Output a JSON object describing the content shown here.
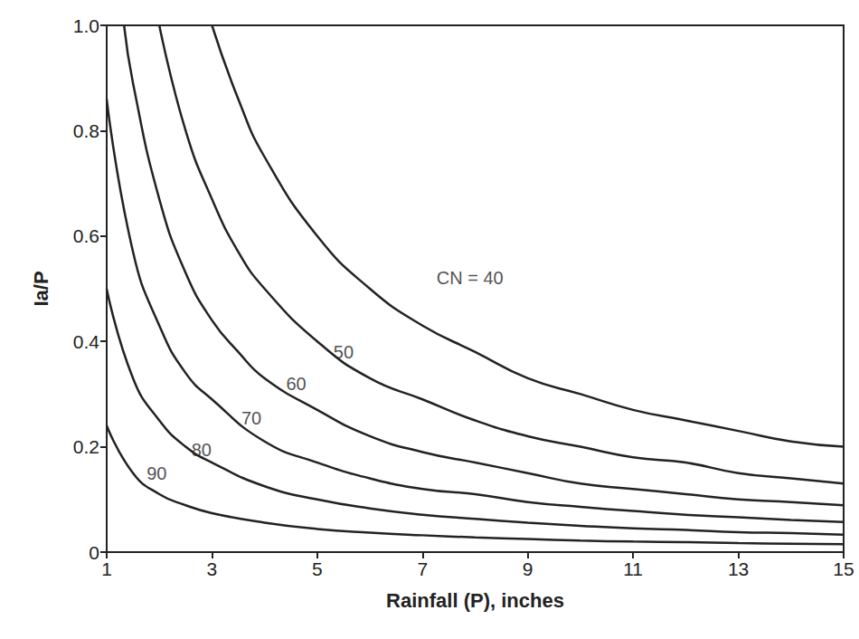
{
  "chart_data": {
    "type": "line",
    "xlabel": "Rainfall (P), inches",
    "ylabel": "Ia/P",
    "xlim": [
      1,
      15
    ],
    "xticks": [
      1,
      3,
      5,
      7,
      9,
      11,
      13,
      15
    ],
    "ylim": [
      0,
      1
    ],
    "yticks": [
      0,
      0.2,
      0.4,
      0.6,
      0.8,
      {
        "value": 1,
        "label": "1.0"
      }
    ],
    "grid": false,
    "color": "#222222",
    "series": [
      {
        "name": "CN = 40",
        "x": [
          3,
          3.5,
          4,
          5,
          6,
          7,
          8,
          9,
          10,
          11,
          12,
          13,
          14,
          15
        ],
        "values": [
          1.0,
          0.86,
          0.75,
          0.6,
          0.5,
          0.43,
          0.38,
          0.33,
          0.3,
          0.27,
          0.25,
          0.23,
          0.21,
          0.2
        ]
      },
      {
        "name": "50",
        "x": [
          2,
          2.5,
          3,
          3.5,
          4,
          5,
          6,
          7,
          8,
          9,
          10,
          11,
          12,
          13,
          14,
          15
        ],
        "values": [
          1.0,
          0.8,
          0.67,
          0.57,
          0.5,
          0.4,
          0.33,
          0.29,
          0.25,
          0.22,
          0.2,
          0.18,
          0.17,
          0.15,
          0.14,
          0.13
        ]
      },
      {
        "name": "60",
        "x": [
          1.33,
          1.5,
          2,
          2.5,
          3,
          3.5,
          4,
          5,
          6,
          7,
          8,
          9,
          10,
          11,
          12,
          13,
          14,
          15
        ],
        "values": [
          1.0,
          0.89,
          0.67,
          0.53,
          0.44,
          0.38,
          0.33,
          0.27,
          0.22,
          0.19,
          0.17,
          0.15,
          0.13,
          0.12,
          0.11,
          0.1,
          0.095,
          0.089
        ]
      },
      {
        "name": "70",
        "x": [
          1,
          1.5,
          2,
          2.5,
          3,
          4,
          5,
          6,
          7,
          8,
          9,
          10,
          11,
          12,
          13,
          14,
          15
        ],
        "values": [
          0.86,
          0.57,
          0.43,
          0.34,
          0.29,
          0.21,
          0.17,
          0.14,
          0.12,
          0.11,
          0.095,
          0.086,
          0.078,
          0.071,
          0.066,
          0.061,
          0.057
        ]
      },
      {
        "name": "80",
        "x": [
          1,
          1.5,
          2,
          2.5,
          3,
          4,
          5,
          6,
          7,
          8,
          9,
          10,
          11,
          12,
          13,
          14,
          15
        ],
        "values": [
          0.5,
          0.33,
          0.25,
          0.2,
          0.17,
          0.125,
          0.1,
          0.083,
          0.071,
          0.063,
          0.056,
          0.05,
          0.045,
          0.042,
          0.038,
          0.036,
          0.033
        ]
      },
      {
        "name": "90",
        "x": [
          1,
          1.5,
          2,
          2.5,
          3,
          4,
          5,
          6,
          7,
          8,
          9,
          10,
          11,
          12,
          13,
          14,
          15
        ],
        "values": [
          0.24,
          0.15,
          0.11,
          0.089,
          0.074,
          0.056,
          0.044,
          0.037,
          0.032,
          0.028,
          0.025,
          0.022,
          0.02,
          0.019,
          0.017,
          0.016,
          0.015
        ]
      }
    ],
    "annotations": [
      {
        "text": "CN = 40",
        "x": 7.9,
        "y": 0.52
      },
      {
        "text": "50",
        "x": 5.5,
        "y": 0.38
      },
      {
        "text": "60",
        "x": 4.6,
        "y": 0.32
      },
      {
        "text": "70",
        "x": 3.75,
        "y": 0.255
      },
      {
        "text": "80",
        "x": 2.8,
        "y": 0.195
      },
      {
        "text": "90",
        "x": 1.95,
        "y": 0.15
      }
    ]
  }
}
